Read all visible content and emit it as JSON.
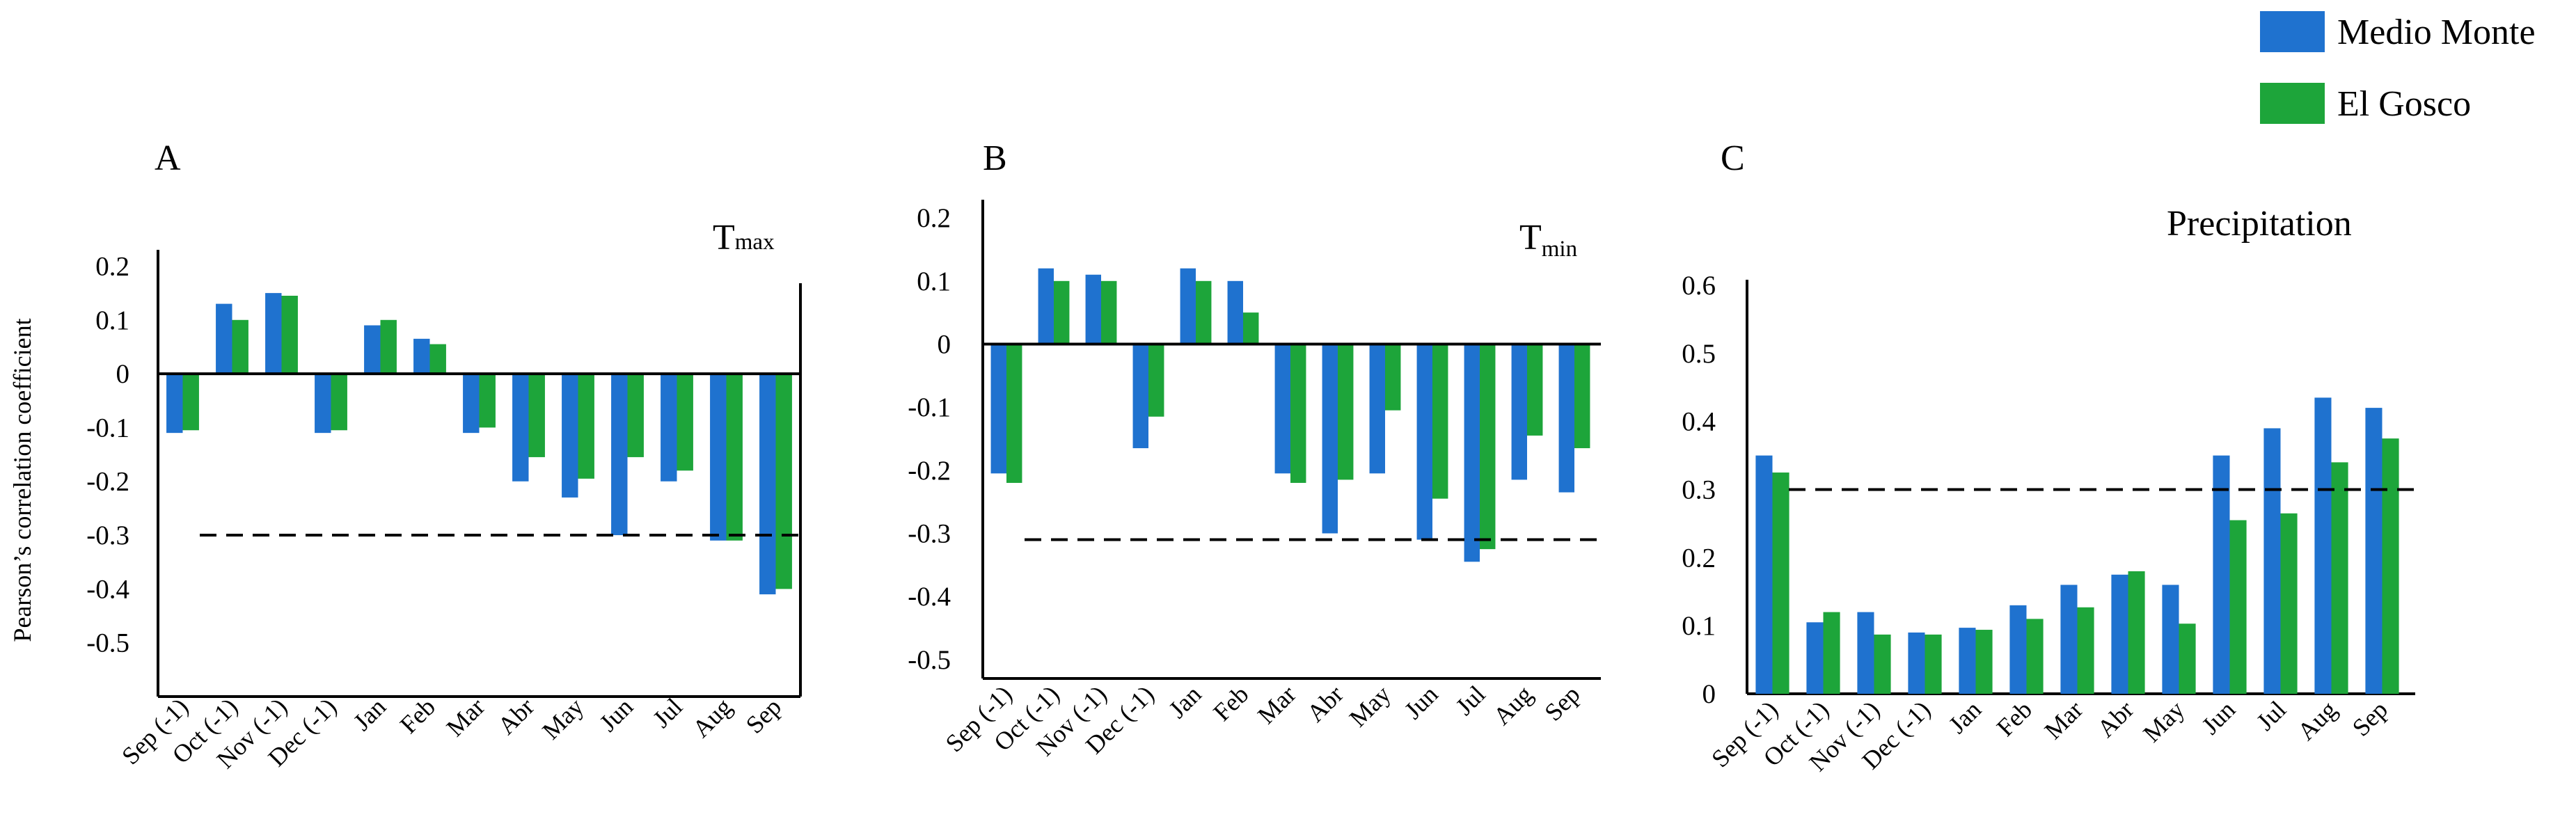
{
  "colors": {
    "series1": "#1F72CF",
    "series2": "#1DA53A"
  },
  "legend": [
    {
      "label": "Medio Monte",
      "color": "#1F72CF"
    },
    {
      "label": "El Gosco",
      "color": "#1DA53A"
    }
  ],
  "shared_ylabel": "Pearson’s correlation coefficient",
  "chart_data": [
    {
      "panel": "A",
      "type": "bar",
      "title": "T",
      "title_sub": "max",
      "xlabel": "",
      "ylabel": "Pearson’s correlation coefficient",
      "ylim": [
        -0.6,
        0.22
      ],
      "yticks": [
        0.2,
        0.1,
        0,
        -0.1,
        -0.2,
        -0.3,
        -0.4,
        -0.5
      ],
      "ytick_labels": [
        "0.2",
        "0.1",
        "0",
        "-0.1",
        "-0.2",
        "-0.3",
        "-0.4",
        "-0.5"
      ],
      "threshold": -0.3,
      "categories": [
        "Sep (-1)",
        "Oct (-1)",
        "Nov (-1)",
        "Dec (-1)",
        "Jan",
        "Feb",
        "Mar",
        "Abr",
        "May",
        "Jun",
        "Jul",
        "Aug",
        "Sep"
      ],
      "series": [
        {
          "name": "Medio Monte",
          "values": [
            -0.11,
            0.13,
            0.15,
            -0.11,
            0.09,
            0.065,
            -0.11,
            -0.2,
            -0.23,
            -0.3,
            -0.2,
            -0.31,
            -0.41
          ]
        },
        {
          "name": "El Gosco",
          "values": [
            -0.105,
            0.1,
            0.145,
            -0.105,
            0.1,
            0.055,
            -0.1,
            -0.155,
            -0.195,
            -0.155,
            -0.18,
            -0.31,
            -0.4
          ]
        }
      ]
    },
    {
      "panel": "B",
      "type": "bar",
      "title": "T",
      "title_sub": "min",
      "xlabel": "",
      "ylabel": "",
      "ylim": [
        -0.53,
        0.22
      ],
      "yticks": [
        0.2,
        0.1,
        0,
        -0.1,
        -0.2,
        -0.3,
        -0.4,
        -0.5
      ],
      "ytick_labels": [
        "0.2",
        "0.1",
        "0",
        "-0.1",
        "-0.2",
        "-0.3",
        "-0.4",
        "-0.5"
      ],
      "threshold": -0.31,
      "categories": [
        "Sep (-1)",
        "Oct (-1)",
        "Nov (-1)",
        "Dec (-1)",
        "Jan",
        "Feb",
        "Mar",
        "Abr",
        "May",
        "Jun",
        "Jul",
        "Aug",
        "Sep"
      ],
      "series": [
        {
          "name": "Medio Monte",
          "values": [
            -0.205,
            0.12,
            0.11,
            -0.165,
            0.12,
            0.1,
            -0.205,
            -0.3,
            -0.205,
            -0.31,
            -0.345,
            -0.215,
            -0.235
          ]
        },
        {
          "name": "El Gosco",
          "values": [
            -0.22,
            0.1,
            0.1,
            -0.115,
            0.1,
            0.05,
            -0.22,
            -0.215,
            -0.105,
            -0.245,
            -0.325,
            -0.145,
            -0.165
          ]
        }
      ]
    },
    {
      "panel": "C",
      "type": "bar",
      "title": "Precipitation",
      "title_sub": "",
      "xlabel": "",
      "ylabel": "",
      "ylim": [
        0,
        0.6
      ],
      "yticks": [
        0,
        0.1,
        0.2,
        0.3,
        0.4,
        0.5,
        0.6
      ],
      "ytick_labels": [
        "0",
        "0.1",
        "0.2",
        "0.3",
        "0.4",
        "0.5",
        "0.6"
      ],
      "threshold": 0.3,
      "categories": [
        "Sep (-1)",
        "Oct (-1)",
        "Nov (-1)",
        "Dec (-1)",
        "Jan",
        "Feb",
        "Mar",
        "Abr",
        "May",
        "Jun",
        "Jul",
        "Aug",
        "Sep"
      ],
      "series": [
        {
          "name": "Medio Monte",
          "values": [
            0.35,
            0.105,
            0.12,
            0.09,
            0.097,
            0.13,
            0.16,
            0.175,
            0.16,
            0.35,
            0.39,
            0.435,
            0.42
          ]
        },
        {
          "name": "El Gosco",
          "values": [
            0.325,
            0.12,
            0.087,
            0.087,
            0.094,
            0.11,
            0.127,
            0.18,
            0.103,
            0.255,
            0.265,
            0.34,
            0.375
          ]
        }
      ]
    }
  ]
}
